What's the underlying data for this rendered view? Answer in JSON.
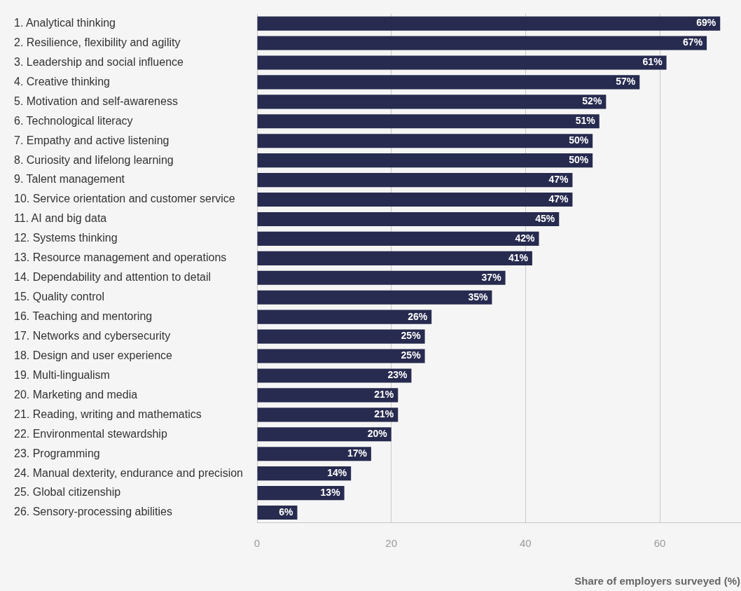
{
  "chart_data": {
    "type": "bar",
    "orientation": "horizontal",
    "xlabel": "Share of employers surveyed (%)",
    "categories": [
      "1. Analytical thinking",
      "2. Resilience, flexibility and agility",
      "3. Leadership and social influence",
      "4. Creative thinking",
      "5. Motivation and self-awareness",
      "6. Technological literacy",
      "7. Empathy and active listening",
      "8. Curiosity and lifelong learning",
      "9. Talent management",
      "10. Service orientation and customer service",
      "11. AI and big data",
      "12. Systems thinking",
      "13. Resource management and operations",
      "14. Dependability and attention to detail",
      "15. Quality control",
      "16. Teaching and mentoring",
      "17. Networks and cybersecurity",
      "18. Design and user experience",
      "19. Multi-lingualism",
      "20. Marketing and media",
      "21. Reading, writing and mathematics",
      "22. Environmental stewardship",
      "23. Programming",
      "24. Manual dexterity, endurance and precision",
      "25. Global citizenship",
      "26. Sensory-processing abilities"
    ],
    "values": [
      69,
      67,
      61,
      57,
      52,
      51,
      50,
      50,
      47,
      47,
      45,
      42,
      41,
      37,
      35,
      26,
      25,
      25,
      23,
      21,
      21,
      20,
      17,
      14,
      13,
      6
    ],
    "value_labels": [
      "69%",
      "67%",
      "61%",
      "57%",
      "52%",
      "51%",
      "50%",
      "50%",
      "47%",
      "47%",
      "45%",
      "42%",
      "41%",
      "37%",
      "35%",
      "26%",
      "25%",
      "25%",
      "23%",
      "21%",
      "21%",
      "20%",
      "17%",
      "14%",
      "13%",
      "6%"
    ],
    "color": "#272b4f",
    "xlim": [
      0,
      72
    ],
    "xticks": [
      0,
      20,
      40,
      60
    ],
    "grid": "x",
    "legend": false
  }
}
